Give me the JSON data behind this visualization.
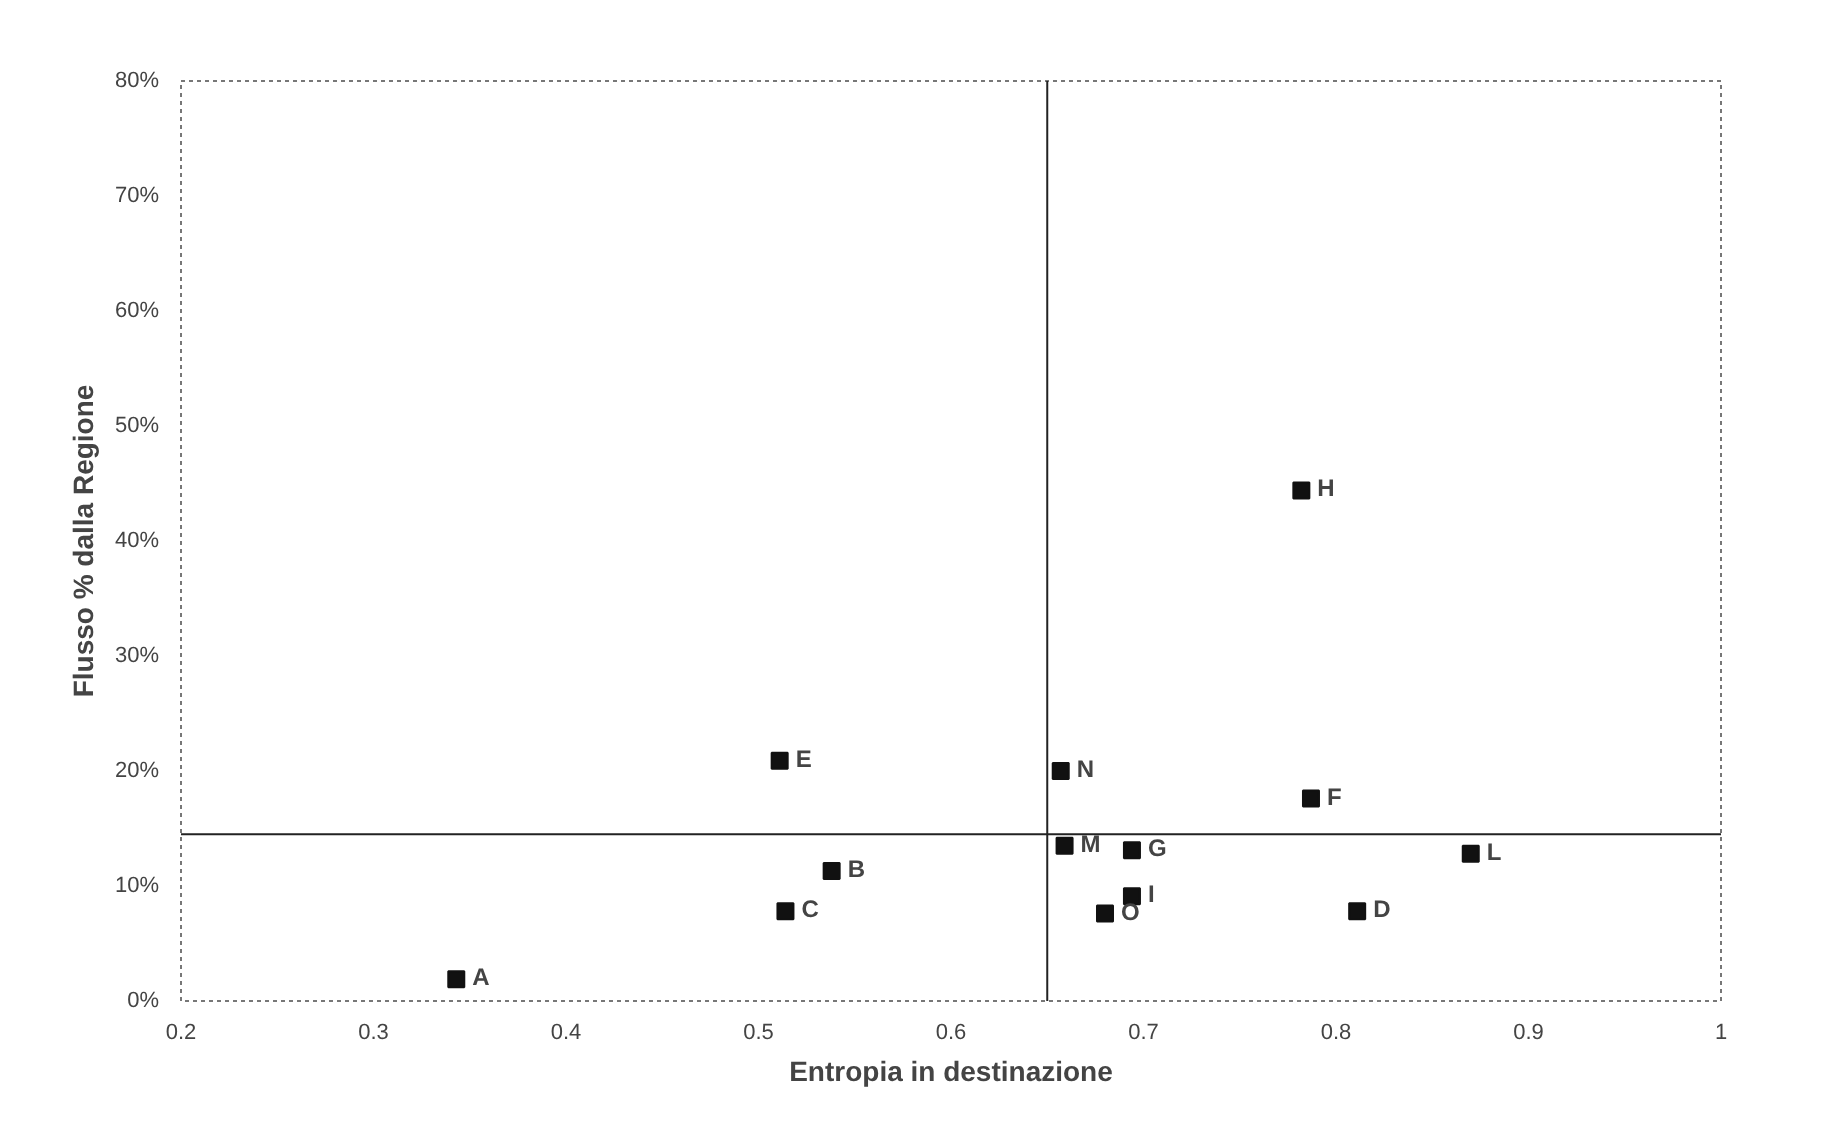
{
  "chart_data": {
    "type": "scatter",
    "xlabel": "Entropia in destinazione",
    "ylabel": "Flusso % dalla Regione",
    "x": [
      0.343,
      0.538,
      0.514,
      0.811,
      0.511,
      0.787,
      0.694,
      0.782,
      0.694,
      0.87,
      0.659,
      0.657,
      0.68
    ],
    "series": [
      {
        "color": "#111111",
        "values": [
          1.9,
          11.3,
          7.8,
          7.8,
          20.9,
          17.6,
          13.1,
          44.4,
          9.1,
          12.8,
          13.5,
          20.0,
          7.6
        ]
      }
    ],
    "annotations": [
      {
        "text": "A",
        "x": 0.343,
        "y": 1.9
      },
      {
        "text": "B",
        "x": 0.538,
        "y": 11.3
      },
      {
        "text": "C",
        "x": 0.514,
        "y": 7.8
      },
      {
        "text": "D",
        "x": 0.811,
        "y": 7.8
      },
      {
        "text": "E",
        "x": 0.511,
        "y": 20.9
      },
      {
        "text": "F",
        "x": 0.787,
        "y": 17.6
      },
      {
        "text": "G",
        "x": 0.694,
        "y": 13.1
      },
      {
        "text": "H",
        "x": 0.782,
        "y": 44.4
      },
      {
        "text": "I",
        "x": 0.694,
        "y": 9.1
      },
      {
        "text": "L",
        "x": 0.87,
        "y": 12.8
      },
      {
        "text": "M",
        "x": 0.659,
        "y": 13.5
      },
      {
        "text": "N",
        "x": 0.657,
        "y": 20.0
      },
      {
        "text": "O",
        "x": 0.68,
        "y": 7.6
      }
    ],
    "xlim": [
      0.2,
      1
    ],
    "xticks": [
      0.2,
      0.3,
      0.4,
      0.5,
      0.6,
      0.7,
      0.8,
      0.9,
      1
    ],
    "ylim": [
      0,
      80
    ],
    "yticks": [
      {
        "value": 0,
        "label": "0%"
      },
      {
        "value": 10,
        "label": "10%"
      },
      {
        "value": 20,
        "label": "20%"
      },
      {
        "value": 30,
        "label": "30%"
      },
      {
        "value": 40,
        "label": "40%"
      },
      {
        "value": 50,
        "label": "50%"
      },
      {
        "value": 60,
        "label": "60%"
      },
      {
        "value": 70,
        "label": "70%"
      },
      {
        "value": 80,
        "label": "80%"
      }
    ],
    "ref_lines": [
      {
        "axis": "x",
        "value": 0.65,
        "color": "#222222"
      },
      {
        "axis": "y",
        "value": 14.5,
        "color": "#222222"
      }
    ],
    "grid": false,
    "marker": "square"
  }
}
